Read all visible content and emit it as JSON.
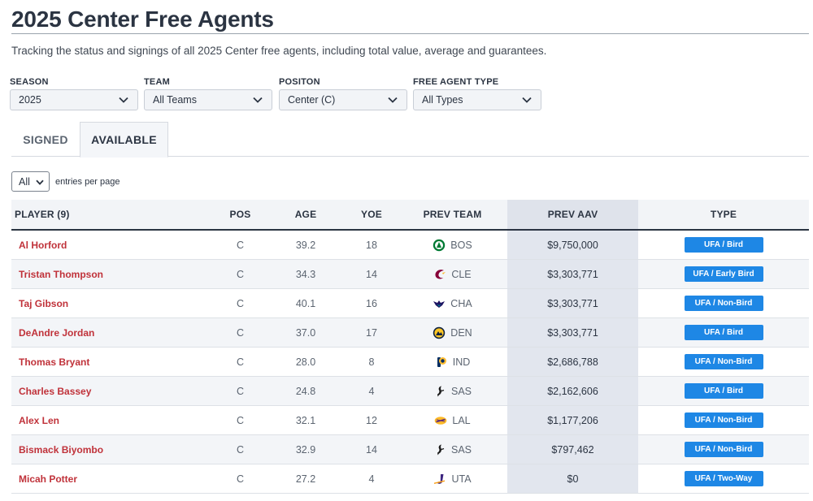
{
  "page": {
    "title": "2025 Center Free Agents",
    "subtitle": "Tracking the status and signings of all 2025 Center free agents, including total value, average and guarantees."
  },
  "filters": [
    {
      "label": "SEASON",
      "value": "2025"
    },
    {
      "label": "TEAM",
      "value": "All Teams"
    },
    {
      "label": "POSITON",
      "value": "Center (C)"
    },
    {
      "label": "FREE AGENT TYPE",
      "value": "All Types"
    }
  ],
  "tabs": [
    {
      "label": "SIGNED",
      "active": false
    },
    {
      "label": "AVAILABLE",
      "active": true
    }
  ],
  "entries": {
    "value": "All",
    "label": "entries per page"
  },
  "colors": {
    "badge": "#1e87e5",
    "player": "#c0323a"
  },
  "table": {
    "headers": {
      "player": "PLAYER (9)",
      "pos": "POS",
      "age": "AGE",
      "yoe": "YOE",
      "team": "PREV TEAM",
      "aav": "PREV AAV",
      "type": "TYPE"
    },
    "rows": [
      {
        "player": "Al Horford",
        "pos": "C",
        "age": "39.2",
        "yoe": "18",
        "team": "BOS",
        "team_icon": "celtics-logo-icon",
        "aav": "$9,750,000",
        "type": "UFA / Bird"
      },
      {
        "player": "Tristan Thompson",
        "pos": "C",
        "age": "34.3",
        "yoe": "14",
        "team": "CLE",
        "team_icon": "cavaliers-logo-icon",
        "aav": "$3,303,771",
        "type": "UFA / Early Bird"
      },
      {
        "player": "Taj Gibson",
        "pos": "C",
        "age": "40.1",
        "yoe": "16",
        "team": "CHA",
        "team_icon": "hornets-logo-icon",
        "aav": "$3,303,771",
        "type": "UFA / Non-Bird"
      },
      {
        "player": "DeAndre Jordan",
        "pos": "C",
        "age": "37.0",
        "yoe": "17",
        "team": "DEN",
        "team_icon": "nuggets-logo-icon",
        "aav": "$3,303,771",
        "type": "UFA / Bird"
      },
      {
        "player": "Thomas Bryant",
        "pos": "C",
        "age": "28.0",
        "yoe": "8",
        "team": "IND",
        "team_icon": "pacers-logo-icon",
        "aav": "$2,686,788",
        "type": "UFA / Non-Bird"
      },
      {
        "player": "Charles Bassey",
        "pos": "C",
        "age": "24.8",
        "yoe": "4",
        "team": "SAS",
        "team_icon": "spurs-logo-icon",
        "aav": "$2,162,606",
        "type": "UFA / Bird"
      },
      {
        "player": "Alex Len",
        "pos": "C",
        "age": "32.1",
        "yoe": "12",
        "team": "LAL",
        "team_icon": "lakers-logo-icon",
        "aav": "$1,177,206",
        "type": "UFA / Non-Bird"
      },
      {
        "player": "Bismack Biyombo",
        "pos": "C",
        "age": "32.9",
        "yoe": "14",
        "team": "SAS",
        "team_icon": "spurs-logo-icon",
        "aav": "$797,462",
        "type": "UFA / Non-Bird"
      },
      {
        "player": "Micah Potter",
        "pos": "C",
        "age": "27.2",
        "yoe": "4",
        "team": "UTA",
        "team_icon": "jazz-logo-icon",
        "aav": "$0",
        "type": "UFA / Two-Way"
      }
    ]
  }
}
